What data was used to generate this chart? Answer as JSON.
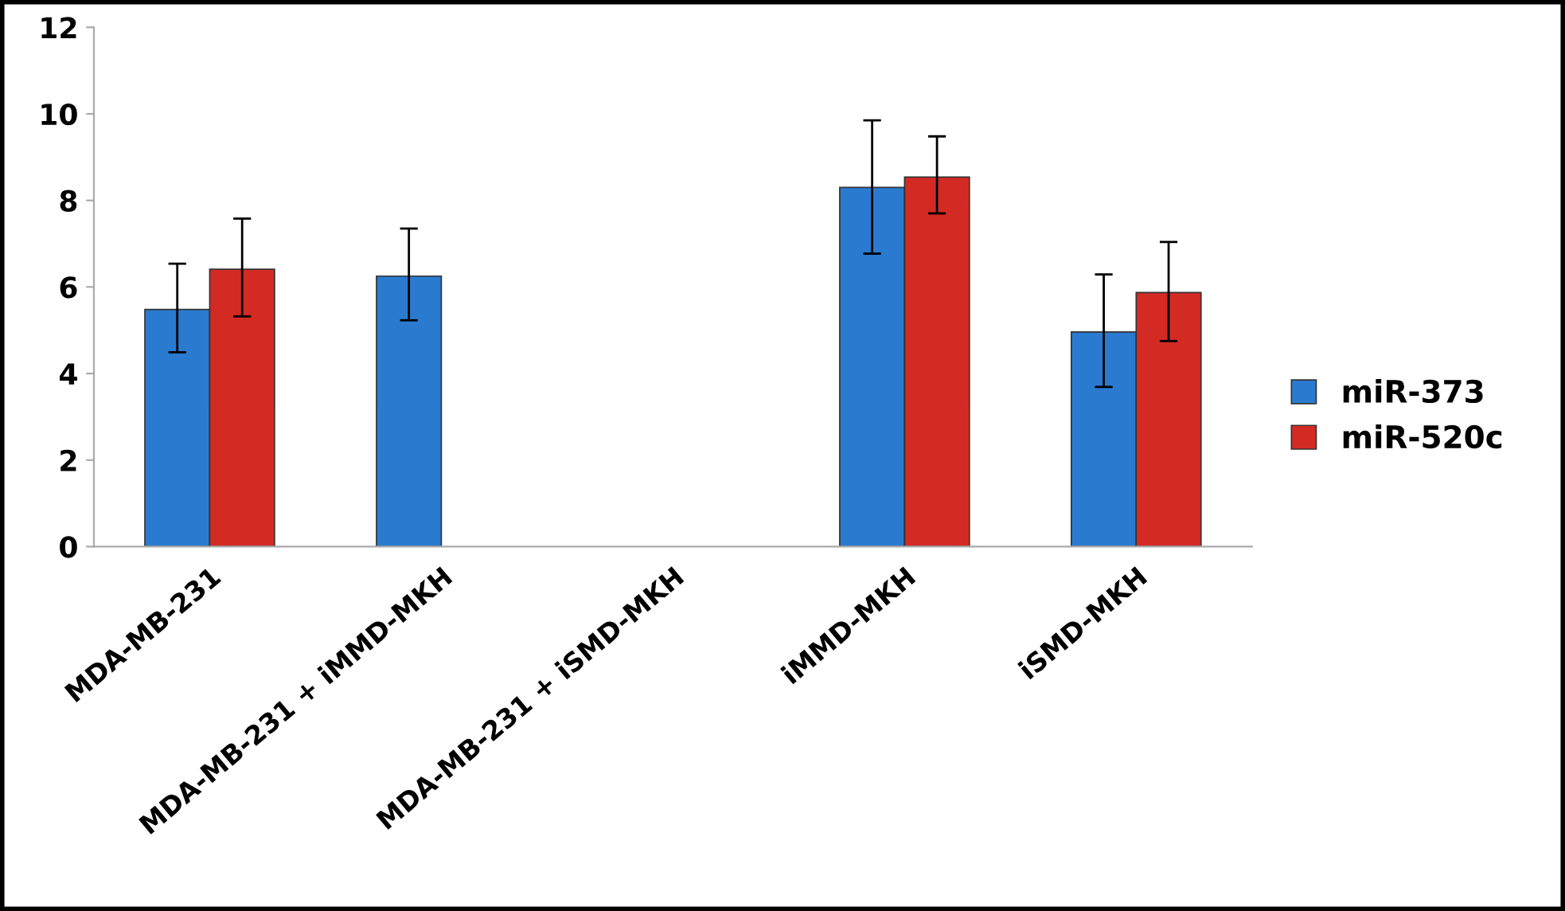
{
  "chart_data": {
    "type": "bar",
    "categories": [
      "MDA-MB-231",
      "MDA-MB-231 + iMMD-MKH",
      "MDA-MB-231 + iSMD-MKH",
      "iMMD-MKH",
      "iSMD-MKH"
    ],
    "series": [
      {
        "name": "miR-373",
        "color": "#2a7bd0",
        "values": [
          5.48,
          6.25,
          null,
          8.3,
          4.96
        ],
        "errors": [
          [
            4.49,
            6.54
          ],
          [
            5.23,
            7.35
          ],
          null,
          [
            6.77,
            9.85
          ],
          [
            3.69,
            6.29
          ]
        ]
      },
      {
        "name": "miR-520c",
        "color": "#d42a24",
        "values": [
          6.41,
          null,
          null,
          8.54,
          5.87
        ],
        "errors": [
          [
            5.32,
            7.58
          ],
          null,
          null,
          [
            7.7,
            9.48
          ],
          [
            4.75,
            7.04
          ]
        ]
      }
    ],
    "ylim": [
      0,
      12
    ],
    "yticks": [
      0,
      2,
      4,
      6,
      8,
      10,
      12
    ],
    "grid": false,
    "legend": "right"
  }
}
